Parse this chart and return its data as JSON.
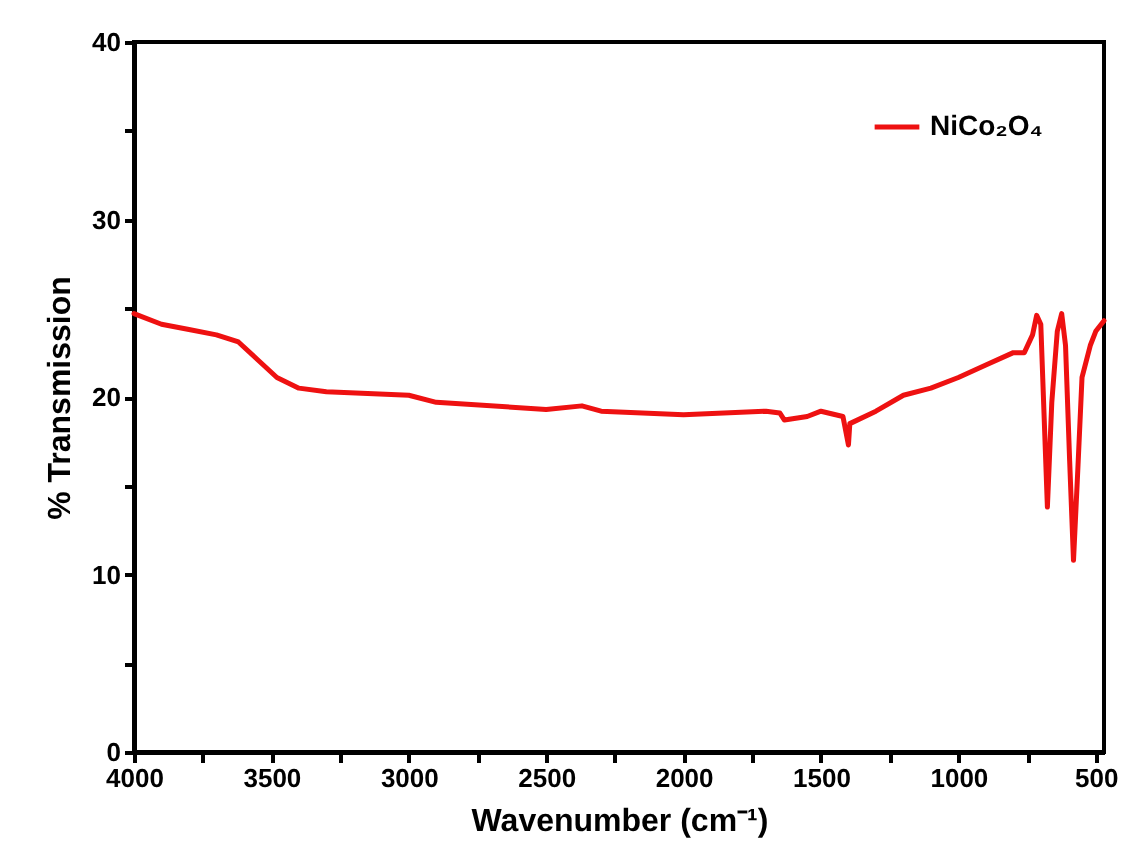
{
  "chart_data": {
    "type": "line",
    "xlabel": "Wavenumber (cm⁻¹)",
    "ylabel": "% Transmission",
    "xlim": [
      4000,
      470
    ],
    "ylim": [
      0,
      40
    ],
    "xticks": [
      4000,
      {
        "value": 3750,
        "label": null
      },
      3500,
      {
        "value": 3250,
        "label": null
      },
      3000,
      {
        "value": 2750,
        "label": null
      },
      2500,
      {
        "value": 2250,
        "label": null
      },
      2000,
      {
        "value": 1750,
        "label": null
      },
      1500,
      {
        "value": 1250,
        "label": null
      },
      1000,
      {
        "value": 750,
        "label": null
      },
      500
    ],
    "yticks": [
      0,
      {
        "value": 5,
        "label": null
      },
      10,
      {
        "value": 15,
        "label": null
      },
      20,
      {
        "value": 25,
        "label": null
      },
      30,
      {
        "value": 35,
        "label": null
      },
      40
    ],
    "legend": "top right",
    "grid": false,
    "series": [
      {
        "name": "NiCo₂O₄",
        "color": "#ee1111",
        "x": [
          4000,
          3900,
          3800,
          3700,
          3620,
          3550,
          3480,
          3400,
          3300,
          3000,
          2900,
          2500,
          2370,
          2300,
          2000,
          1700,
          1650,
          1633,
          1550,
          1500,
          1420,
          1400,
          1395,
          1300,
          1200,
          1100,
          1000,
          900,
          800,
          760,
          730,
          715,
          700,
          676,
          660,
          640,
          624,
          610,
          595,
          581,
          565,
          550,
          520,
          500,
          470
        ],
        "values": [
          24.7,
          24.1,
          23.8,
          23.5,
          23.1,
          22.1,
          21.1,
          20.5,
          20.3,
          20.1,
          19.7,
          19.3,
          19.5,
          19.2,
          19.0,
          19.2,
          19.1,
          18.7,
          18.9,
          19.2,
          18.9,
          17.3,
          18.5,
          19.2,
          20.1,
          20.5,
          21.1,
          21.8,
          22.5,
          22.5,
          23.5,
          24.6,
          24.1,
          13.8,
          19.7,
          23.7,
          24.7,
          22.9,
          16.4,
          10.8,
          16.0,
          21.1,
          22.9,
          23.7,
          24.3
        ]
      }
    ]
  }
}
